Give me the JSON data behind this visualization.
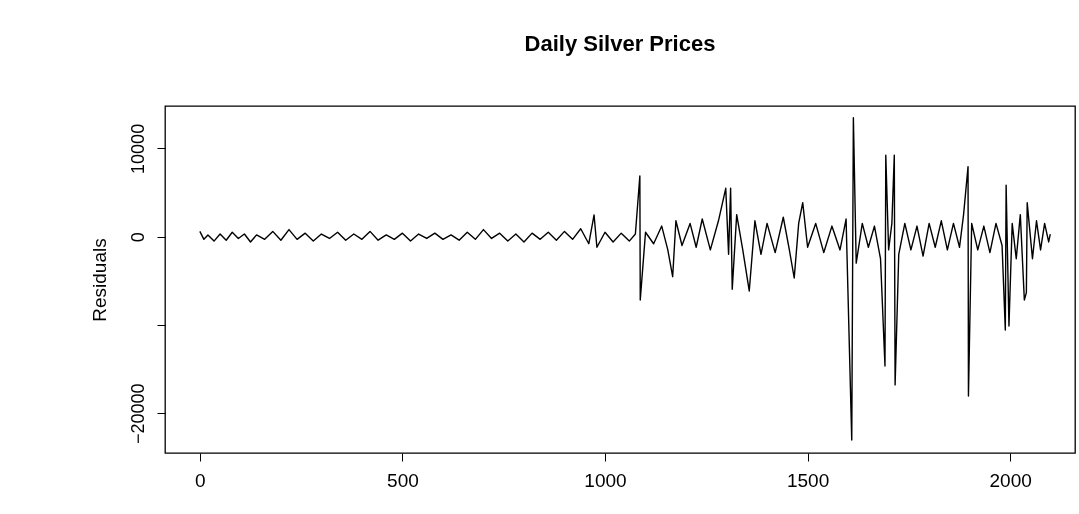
{
  "chart_data": {
    "type": "line",
    "title": "Daily Silver Prices",
    "ylabel": "Residuals",
    "color": "#000000",
    "grid": false,
    "xlim": [
      -86,
      2160
    ],
    "xticks": [
      0,
      500,
      1000,
      1500,
      2000
    ],
    "ylim": [
      -24500,
      14800
    ],
    "yticks": [
      -20000,
      {
        "value": -10000,
        "label": null
      },
      0,
      10000
    ],
    "x": [
      0,
      10,
      20,
      35,
      50,
      65,
      80,
      95,
      110,
      125,
      140,
      160,
      180,
      200,
      220,
      240,
      260,
      280,
      300,
      320,
      340,
      360,
      380,
      400,
      420,
      440,
      460,
      480,
      500,
      520,
      540,
      560,
      580,
      600,
      620,
      640,
      660,
      680,
      700,
      720,
      740,
      760,
      780,
      800,
      820,
      840,
      860,
      880,
      900,
      920,
      940,
      960,
      973,
      980,
      1000,
      1020,
      1040,
      1060,
      1075,
      1086,
      1087,
      1100,
      1120,
      1140,
      1155,
      1167,
      1175,
      1190,
      1210,
      1225,
      1240,
      1260,
      1280,
      1298,
      1305,
      1310,
      1314,
      1325,
      1340,
      1356,
      1370,
      1385,
      1400,
      1420,
      1440,
      1455,
      1467,
      1478,
      1488,
      1500,
      1520,
      1540,
      1560,
      1580,
      1595,
      1609,
      1613,
      1620,
      1635,
      1650,
      1665,
      1680,
      1691,
      1693,
      1700,
      1708,
      1714,
      1716,
      1725,
      1740,
      1755,
      1770,
      1785,
      1800,
      1815,
      1830,
      1845,
      1860,
      1875,
      1885,
      1896,
      1897,
      1905,
      1920,
      1935,
      1950,
      1965,
      1980,
      1988,
      1990,
      1997,
      2005,
      2015,
      2025,
      2035,
      2040,
      2042,
      2055,
      2065,
      2075,
      2085,
      2095,
      2099
    ],
    "values": [
      600,
      -300,
      200,
      -500,
      300,
      -400,
      500,
      -200,
      300,
      -600,
      200,
      -300,
      600,
      -400,
      800,
      -300,
      400,
      -500,
      300,
      -200,
      500,
      -400,
      300,
      -300,
      600,
      -400,
      200,
      -300,
      400,
      -500,
      300,
      -200,
      400,
      -300,
      200,
      -400,
      500,
      -300,
      800,
      -200,
      400,
      -500,
      300,
      -600,
      400,
      -300,
      500,
      -400,
      600,
      -300,
      900,
      -800,
      2460,
      -1200,
      500,
      -600,
      400,
      -500,
      300,
      6870,
      -7170,
      500,
      -800,
      1200,
      -1500,
      -4530,
      1800,
      -1000,
      1500,
      -1200,
      2000,
      -1500,
      1800,
      5480,
      -2000,
      5480,
      -5960,
      2500,
      -1500,
      -6150,
      1800,
      -2000,
      1500,
      -1800,
      2200,
      -1500,
      -4680,
      1500,
      3850,
      -1200,
      1500,
      -1800,
      1200,
      -1500,
      2000,
      -23020,
      13480,
      -3000,
      1500,
      -1200,
      1200,
      -2500,
      -14640,
      9220,
      -1500,
      1500,
      9220,
      -16790,
      -2000,
      1500,
      -1500,
      1200,
      -2200,
      1500,
      -1200,
      1800,
      -1500,
      1500,
      -1200,
      2500,
      7930,
      -18040,
      1500,
      -1500,
      1200,
      -1800,
      1500,
      -1000,
      -10570,
      5820,
      -10110,
      1500,
      -2500,
      2500,
      -7170,
      -6340,
      3850,
      -2500,
      1800,
      -1500,
      1500,
      -600,
      300
    ]
  }
}
